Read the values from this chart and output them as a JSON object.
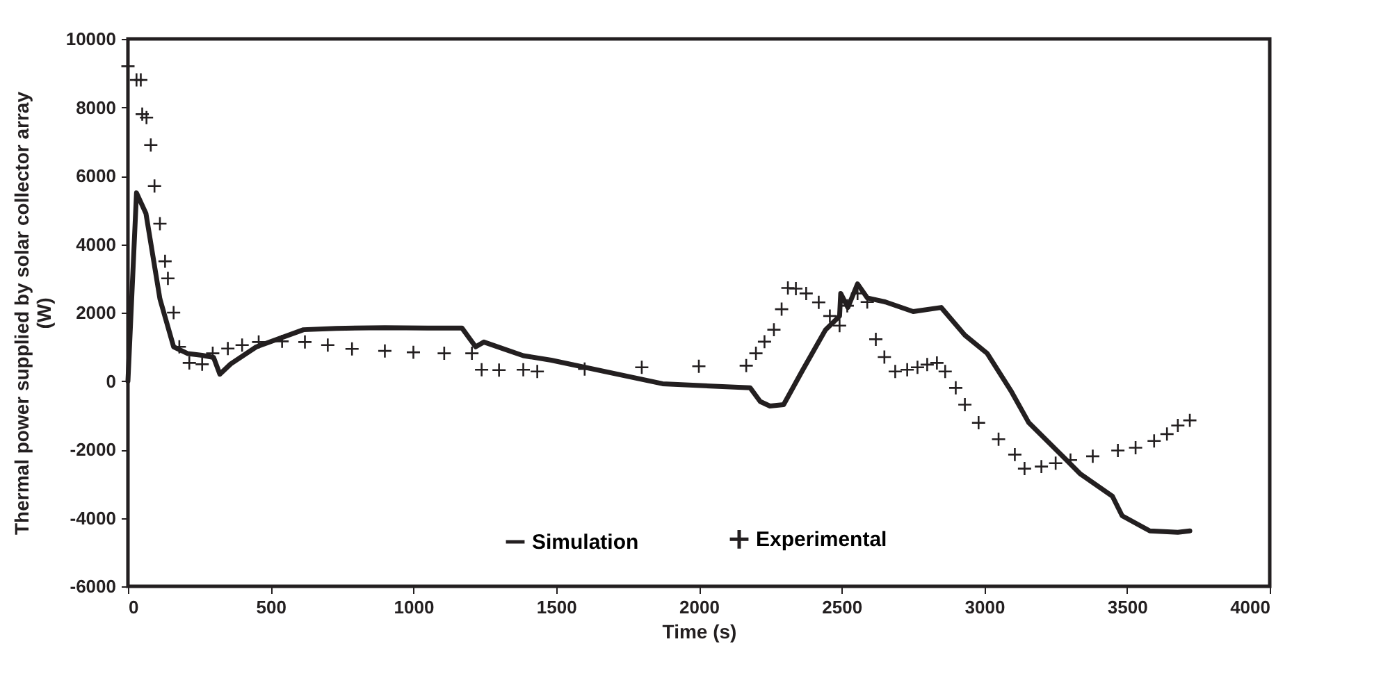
{
  "chart_data": {
    "type": "line",
    "xlabel": "Time (s)",
    "ylabel": [
      "Thermal power supplied by solar collector array",
      "(W)"
    ],
    "xlim": [
      0,
      4000
    ],
    "xticks": [
      0,
      500,
      1000,
      1500,
      2000,
      2500,
      3000,
      3500,
      4000
    ],
    "ylim": [
      -6000,
      10000
    ],
    "yticks": [
      -6000,
      -4000,
      -2000,
      0,
      2000,
      4000,
      6000,
      8000,
      10000
    ],
    "grid": false,
    "legend": "bottom",
    "series": [
      {
        "name": "Simulation",
        "marker": "none",
        "color": "#231f20",
        "x": [
          0,
          30,
          63,
          112,
          160,
          210,
          260,
          300,
          322,
          360,
          450,
          615,
          730,
          900,
          1050,
          1170,
          1218,
          1247,
          1385,
          1483,
          1873,
          2180,
          2215,
          2249,
          2297,
          2361,
          2444,
          2493,
          2497,
          2522,
          2556,
          2590,
          2654,
          2751,
          2849,
          2932,
          3010,
          3093,
          3156,
          3288,
          3337,
          3449,
          3483,
          3580,
          3678,
          3720
        ],
        "values": [
          0,
          5500,
          4900,
          2400,
          1000,
          800,
          750,
          690,
          200,
          500,
          1000,
          1500,
          1540,
          1560,
          1550,
          1550,
          1000,
          1140,
          740,
          610,
          -80,
          -200,
          -600,
          -730,
          -690,
          280,
          1500,
          1900,
          2560,
          2150,
          2840,
          2430,
          2310,
          2030,
          2150,
          1340,
          810,
          -280,
          -1220,
          -2310,
          -2720,
          -3370,
          -3940,
          -4380,
          -4420,
          -4380
        ]
      },
      {
        "name": "Experimental",
        "type": "scatter",
        "marker": "cross",
        "color": "#231f20",
        "x": [
          0,
          30,
          45,
          50,
          65,
          80,
          93,
          112,
          130,
          140,
          160,
          180,
          215,
          260,
          297,
          350,
          400,
          458,
          540,
          620,
          700,
          785,
          900,
          1000,
          1108,
          1205,
          1239,
          1300,
          1385,
          1434,
          1600,
          1800,
          2000,
          2166,
          2200,
          2230,
          2263,
          2290,
          2312,
          2340,
          2376,
          2420,
          2459,
          2493,
          2520,
          2556,
          2590,
          2620,
          2650,
          2688,
          2730,
          2766,
          2800,
          2834,
          2863,
          2900,
          2932,
          2980,
          3050,
          3107,
          3141,
          3200,
          3250,
          3302,
          3380,
          3468,
          3530,
          3595,
          3640,
          3678,
          3720
        ],
        "values": [
          9200,
          8800,
          8800,
          7800,
          7700,
          6900,
          5700,
          4600,
          3500,
          3000,
          2000,
          1000,
          530,
          490,
          810,
          950,
          1050,
          1140,
          1160,
          1140,
          1050,
          940,
          880,
          840,
          810,
          810,
          330,
          320,
          330,
          280,
          350,
          400,
          430,
          450,
          810,
          1150,
          1500,
          2100,
          2720,
          2700,
          2560,
          2300,
          1900,
          1620,
          2200,
          2560,
          2310,
          1220,
          700,
          280,
          330,
          400,
          480,
          530,
          280,
          -200,
          -690,
          -1220,
          -1700,
          -2150,
          -2560,
          -2500,
          -2400,
          -2310,
          -2200,
          -2030,
          -1950,
          -1750,
          -1550,
          -1300,
          -1150
        ]
      }
    ]
  }
}
